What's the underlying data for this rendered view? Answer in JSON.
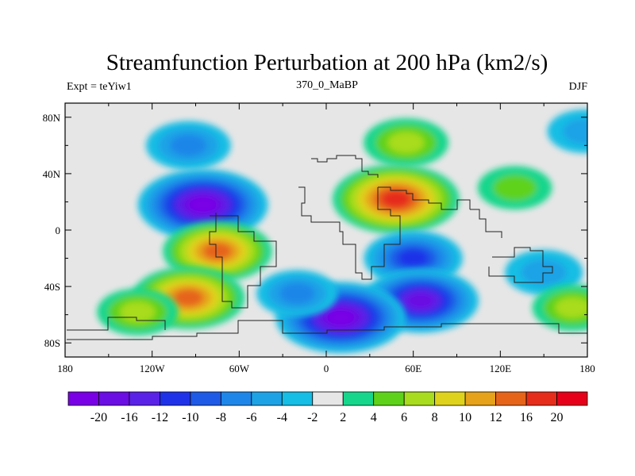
{
  "chart_data": {
    "type": "heatmap",
    "title": "Streamfunction Perturbation at 200 hPa (km2/s)",
    "left_label": "Expt = teYiw1",
    "center_label": "370_0_MaBP",
    "right_label": "DJF",
    "x_ticks": [
      {
        "lon": -180,
        "label": "180"
      },
      {
        "lon": -120,
        "label": "120W"
      },
      {
        "lon": -60,
        "label": "60W"
      },
      {
        "lon": 0,
        "label": "0"
      },
      {
        "lon": 60,
        "label": "60E"
      },
      {
        "lon": 120,
        "label": "120E"
      },
      {
        "lon": 180,
        "label": "180"
      }
    ],
    "y_ticks": [
      {
        "lat": 80,
        "label": "80N"
      },
      {
        "lat": 40,
        "label": "40N"
      },
      {
        "lat": 0,
        "label": "0"
      },
      {
        "lat": -40,
        "label": "40S"
      },
      {
        "lat": -80,
        "label": "80S"
      }
    ],
    "xlim": [
      -180,
      180
    ],
    "ylim": [
      -90,
      90
    ],
    "levels": [
      -20,
      -16,
      -12,
      -10,
      -8,
      -6,
      -4,
      -2,
      2,
      4,
      6,
      8,
      10,
      12,
      16,
      20
    ],
    "level_labels": [
      "-20",
      "-16",
      "-12",
      "-10",
      "-8",
      "-6",
      "-4",
      "-2",
      "2",
      "4",
      "6",
      "8",
      "10",
      "12",
      "16",
      "20"
    ],
    "colors": [
      "#7a00e6",
      "#6a0ee3",
      "#5a22e6",
      "#1f32e8",
      "#1f5ae6",
      "#1e86e8",
      "#1ea2e6",
      "#16bde4",
      "#e6e6e6",
      "#16d68c",
      "#5ed21a",
      "#a8dc1e",
      "#dfd21c",
      "#e6a21a",
      "#e6641a",
      "#e62c1a",
      "#e6001a"
    ],
    "anomalies": [
      {
        "lon": -95,
        "lat": 60,
        "value": -7
      },
      {
        "lon": -85,
        "lat": 18,
        "value": -20
      },
      {
        "lon": -75,
        "lat": -15,
        "value": 14
      },
      {
        "lon": -95,
        "lat": -48,
        "value": 15
      },
      {
        "lon": -130,
        "lat": -58,
        "value": 6
      },
      {
        "lon": 55,
        "lat": 62,
        "value": 7
      },
      {
        "lon": 48,
        "lat": 22,
        "value": 19
      },
      {
        "lon": 60,
        "lat": -20,
        "value": -11
      },
      {
        "lon": 65,
        "lat": -50,
        "value": -16
      },
      {
        "lon": 10,
        "lat": -62,
        "value": -20
      },
      {
        "lon": -20,
        "lat": -45,
        "value": -6
      },
      {
        "lon": 150,
        "lat": -30,
        "value": -5
      },
      {
        "lon": 130,
        "lat": 30,
        "value": 4
      },
      {
        "lon": 170,
        "lat": -55,
        "value": 6
      },
      {
        "lon": 178,
        "lat": 70,
        "value": -4
      }
    ]
  }
}
